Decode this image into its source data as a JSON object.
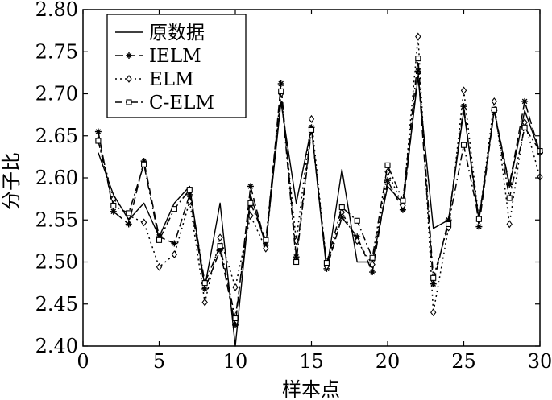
{
  "chart_data": {
    "type": "line",
    "xlabel": "样本点",
    "ylabel": "分子比",
    "xlim": [
      0,
      30
    ],
    "ylim": [
      2.4,
      2.8
    ],
    "xticks": [
      0,
      5,
      10,
      15,
      20,
      25,
      30
    ],
    "yticks": [
      2.4,
      2.45,
      2.5,
      2.55,
      2.6,
      2.65,
      2.7,
      2.75,
      2.8
    ],
    "ytick_labels": [
      "2.40",
      "2.45",
      "2.50",
      "2.55",
      "2.60",
      "2.65",
      "2.70",
      "2.75",
      "2.80"
    ],
    "grid": false,
    "legend_position": "top-left",
    "x": [
      1,
      2,
      3,
      4,
      5,
      6,
      7,
      8,
      9,
      10,
      11,
      12,
      13,
      14,
      15,
      16,
      17,
      18,
      19,
      20,
      21,
      22,
      23,
      24,
      25,
      26,
      27,
      28,
      29,
      30
    ],
    "series": [
      {
        "name": "原数据",
        "style": "solid",
        "marker": "none",
        "values": [
          2.63,
          2.58,
          2.55,
          2.57,
          2.53,
          2.57,
          2.59,
          2.47,
          2.57,
          2.4,
          2.58,
          2.52,
          2.69,
          2.57,
          2.66,
          2.49,
          2.61,
          2.5,
          2.5,
          2.59,
          2.57,
          2.72,
          2.54,
          2.55,
          2.68,
          2.55,
          2.68,
          2.59,
          2.68,
          2.63
        ]
      },
      {
        "name": "IELM",
        "style": "dash",
        "marker": "star",
        "values": [
          2.655,
          2.56,
          2.545,
          2.62,
          2.53,
          2.522,
          2.58,
          2.468,
          2.514,
          2.425,
          2.59,
          2.52,
          2.712,
          2.506,
          2.66,
          2.492,
          2.553,
          2.53,
          2.488,
          2.597,
          2.562,
          2.727,
          2.474,
          2.55,
          2.685,
          2.542,
          2.68,
          2.592,
          2.691,
          2.63
        ]
      },
      {
        "name": "ELM",
        "style": "dot",
        "marker": "diamond",
        "values": [
          2.645,
          2.575,
          2.555,
          2.547,
          2.494,
          2.509,
          2.572,
          2.452,
          2.529,
          2.47,
          2.555,
          2.516,
          2.7,
          2.525,
          2.67,
          2.495,
          2.559,
          2.525,
          2.497,
          2.607,
          2.567,
          2.768,
          2.44,
          2.541,
          2.704,
          2.55,
          2.691,
          2.545,
          2.666,
          2.601
        ]
      },
      {
        "name": "C-ELM",
        "style": "dashdot",
        "marker": "square",
        "values": [
          2.644,
          2.567,
          2.558,
          2.616,
          2.526,
          2.563,
          2.586,
          2.475,
          2.519,
          2.433,
          2.57,
          2.526,
          2.703,
          2.5,
          2.657,
          2.499,
          2.565,
          2.549,
          2.505,
          2.615,
          2.573,
          2.742,
          2.481,
          2.545,
          2.639,
          2.551,
          2.681,
          2.576,
          2.66,
          2.632
        ]
      }
    ]
  }
}
